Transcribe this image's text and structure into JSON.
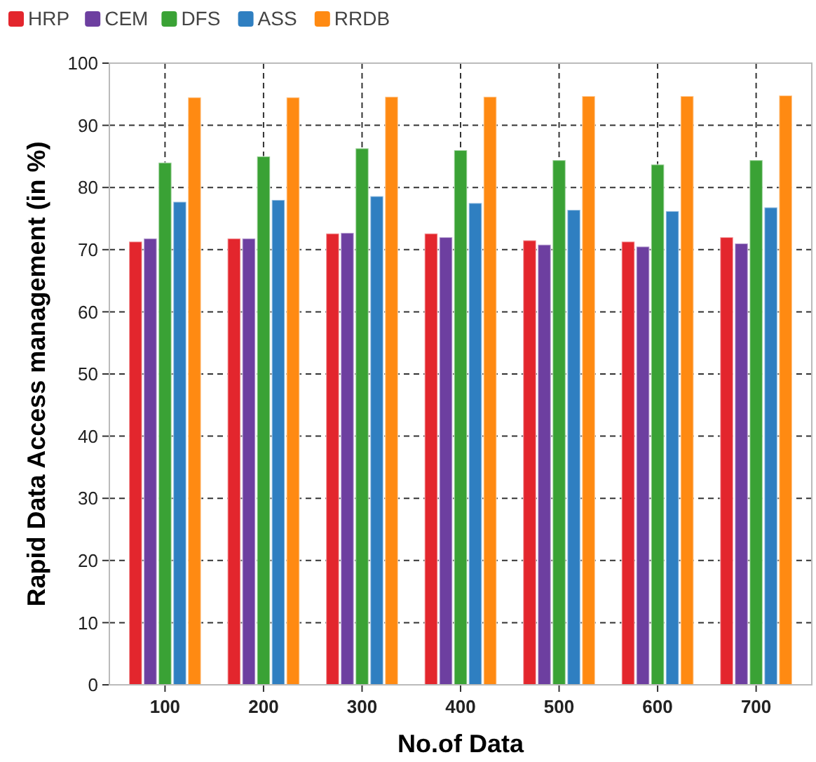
{
  "chart_data": {
    "type": "bar",
    "xlabel": "No.of Data",
    "ylabel": "Rapid Data Access management (in %)",
    "categories": [
      "100",
      "200",
      "300",
      "400",
      "500",
      "600",
      "700"
    ],
    "series": [
      {
        "name": "HRP",
        "color": "#e3262d",
        "values": [
          71.3,
          71.8,
          72.6,
          72.6,
          71.5,
          71.3,
          72.0
        ]
      },
      {
        "name": "CEM",
        "color": "#6d3fa0",
        "values": [
          71.8,
          71.8,
          72.7,
          72.0,
          70.8,
          70.5,
          71.0
        ]
      },
      {
        "name": "DFS",
        "color": "#3aa235",
        "values": [
          84.0,
          85.0,
          86.3,
          86.0,
          84.4,
          83.7,
          84.4
        ]
      },
      {
        "name": "ASS",
        "color": "#2f7fc1",
        "values": [
          77.7,
          78.0,
          78.6,
          77.5,
          76.4,
          76.2,
          76.8
        ]
      },
      {
        "name": "RRDB",
        "color": "#ff8a12",
        "values": [
          94.5,
          94.5,
          94.6,
          94.6,
          94.7,
          94.7,
          94.8
        ]
      }
    ],
    "ylim": [
      0,
      100
    ],
    "yticks": [
      0,
      10,
      20,
      30,
      40,
      50,
      60,
      70,
      80,
      90,
      100
    ],
    "grid": true,
    "legend": "top left"
  }
}
